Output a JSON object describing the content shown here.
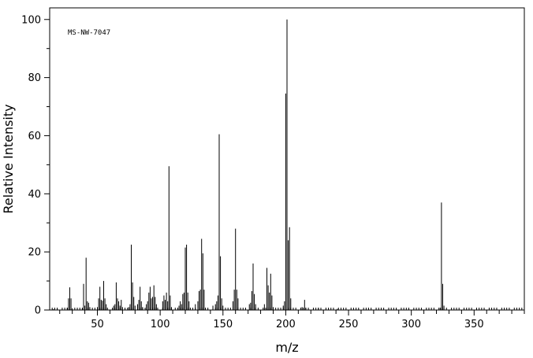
{
  "chart_data": {
    "type": "bar",
    "annotation": "MS-NW-7047",
    "xlabel": "m/z",
    "ylabel": "Relative Intensity",
    "xlim": [
      12,
      390
    ],
    "ylim": [
      0,
      104
    ],
    "x_ticks": [
      50,
      100,
      150,
      200,
      250,
      300,
      350
    ],
    "y_ticks": [
      0,
      20,
      40,
      60,
      80,
      100
    ],
    "grid": false,
    "legend": "none",
    "bar_color": "#000000",
    "peaks": [
      [
        15,
        0.3
      ],
      [
        18,
        0.4
      ],
      [
        26,
        0.8
      ],
      [
        27,
        4
      ],
      [
        28,
        7.8
      ],
      [
        29,
        4
      ],
      [
        30,
        0.6
      ],
      [
        38,
        0.6
      ],
      [
        39,
        9
      ],
      [
        40,
        1.5
      ],
      [
        41,
        18
      ],
      [
        42,
        3
      ],
      [
        43,
        2.5
      ],
      [
        44,
        1
      ],
      [
        50,
        1
      ],
      [
        51,
        4
      ],
      [
        52,
        8
      ],
      [
        53,
        3.5
      ],
      [
        54,
        3.2
      ],
      [
        55,
        10
      ],
      [
        56,
        4
      ],
      [
        57,
        2
      ],
      [
        63,
        1.5
      ],
      [
        64,
        2
      ],
      [
        65,
        9.5
      ],
      [
        66,
        4
      ],
      [
        67,
        3
      ],
      [
        68,
        1.5
      ],
      [
        69,
        3.5
      ],
      [
        70,
        1
      ],
      [
        75,
        1
      ],
      [
        76,
        2
      ],
      [
        77,
        22.5
      ],
      [
        78,
        9.5
      ],
      [
        79,
        4.5
      ],
      [
        80,
        1.5
      ],
      [
        82,
        2
      ],
      [
        83,
        3.5
      ],
      [
        84,
        8
      ],
      [
        85,
        3
      ],
      [
        86,
        1
      ],
      [
        89,
        2
      ],
      [
        90,
        3
      ],
      [
        91,
        6
      ],
      [
        92,
        8
      ],
      [
        93,
        4
      ],
      [
        94,
        4.5
      ],
      [
        95,
        8.5
      ],
      [
        96,
        4.5
      ],
      [
        97,
        2
      ],
      [
        102,
        3
      ],
      [
        103,
        5
      ],
      [
        104,
        3.5
      ],
      [
        105,
        6
      ],
      [
        106,
        3
      ],
      [
        107,
        49.5
      ],
      [
        108,
        5
      ],
      [
        109,
        1
      ],
      [
        115,
        1.5
      ],
      [
        116,
        3
      ],
      [
        117,
        2
      ],
      [
        118,
        5.5
      ],
      [
        119,
        6
      ],
      [
        120,
        21.5
      ],
      [
        121,
        22.5
      ],
      [
        122,
        6
      ],
      [
        123,
        3
      ],
      [
        128,
        2
      ],
      [
        130,
        3
      ],
      [
        131,
        6.5
      ],
      [
        132,
        7
      ],
      [
        133,
        24.5
      ],
      [
        134,
        19.5
      ],
      [
        135,
        7
      ],
      [
        142,
        1.5
      ],
      [
        144,
        2
      ],
      [
        145,
        3
      ],
      [
        146,
        5
      ],
      [
        147,
        60.5
      ],
      [
        148,
        18.5
      ],
      [
        149,
        4
      ],
      [
        150,
        1.5
      ],
      [
        158,
        3
      ],
      [
        159,
        7
      ],
      [
        160,
        28
      ],
      [
        161,
        7
      ],
      [
        162,
        4
      ],
      [
        171,
        2
      ],
      [
        172,
        2.5
      ],
      [
        173,
        6.5
      ],
      [
        174,
        16
      ],
      [
        175,
        5.5
      ],
      [
        176,
        2
      ],
      [
        183,
        2
      ],
      [
        185,
        14.5
      ],
      [
        186,
        8.5
      ],
      [
        187,
        6
      ],
      [
        188,
        12.5
      ],
      [
        189,
        5
      ],
      [
        190,
        1
      ],
      [
        198,
        1.5
      ],
      [
        199,
        3
      ],
      [
        200,
        74.5
      ],
      [
        201,
        100
      ],
      [
        202,
        24
      ],
      [
        203,
        28.5
      ],
      [
        204,
        4
      ],
      [
        213,
        1
      ],
      [
        215,
        3.5
      ],
      [
        216,
        0.8
      ],
      [
        226,
        0.8
      ],
      [
        228,
        0.6
      ],
      [
        241,
        0.4
      ],
      [
        323,
        0.8
      ],
      [
        324,
        37
      ],
      [
        325,
        9
      ],
      [
        326,
        1.5
      ]
    ]
  }
}
